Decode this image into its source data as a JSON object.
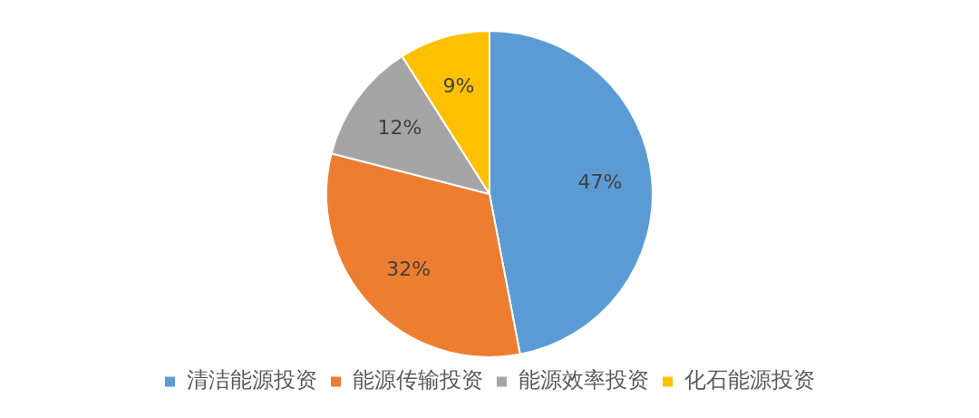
{
  "chart_data": {
    "type": "pie",
    "categories": [
      "清洁能源投资",
      "能源传输投资",
      "能源效率投资",
      "化石能源投资"
    ],
    "values": [
      47,
      32,
      12,
      9
    ],
    "colors": [
      "#5b9bd5",
      "#ed7d31",
      "#a5a5a5",
      "#ffc000"
    ],
    "value_labels": [
      "47%",
      "32%",
      "12%",
      "9%"
    ],
    "legend": "bottom"
  }
}
